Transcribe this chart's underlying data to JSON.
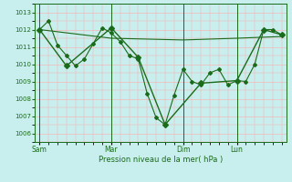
{
  "xlabel": "Pression niveau de la mer( hPa )",
  "background_color": "#c8eeee",
  "grid_color": "#ffaaaa",
  "line_color": "#1a6b1a",
  "ylim": [
    1005.5,
    1013.5
  ],
  "yticks": [
    1006,
    1007,
    1008,
    1009,
    1010,
    1011,
    1012,
    1013
  ],
  "day_labels": [
    "Sam",
    "Mar",
    "Dim",
    "Lun"
  ],
  "day_positions": [
    0,
    8,
    16,
    22
  ],
  "total_x_points": 28,
  "xlim": [
    -0.5,
    27.5
  ],
  "series1_x": [
    0,
    1,
    2,
    3,
    4,
    5,
    6,
    7,
    8,
    9,
    10,
    11,
    12,
    13,
    14,
    15,
    16,
    17,
    18,
    19,
    20,
    21,
    22,
    23,
    24,
    25,
    26,
    27
  ],
  "series1_y": [
    1012.0,
    1012.5,
    1011.1,
    1010.5,
    1009.9,
    1010.3,
    1011.2,
    1012.1,
    1011.8,
    1011.3,
    1010.5,
    1010.3,
    1008.3,
    1006.9,
    1006.5,
    1008.2,
    1009.7,
    1009.0,
    1008.8,
    1009.5,
    1009.7,
    1008.8,
    1009.05,
    1009.0,
    1010.0,
    1012.0,
    1012.0,
    1011.7
  ],
  "series2_x": [
    0,
    8,
    16,
    22,
    27
  ],
  "series2_y": [
    1012.0,
    1011.5,
    1011.4,
    1011.5,
    1011.6
  ],
  "series3_x": [
    0,
    3,
    8,
    11,
    14,
    18,
    22,
    25,
    27
  ],
  "series3_y": [
    1012.0,
    1009.9,
    1012.1,
    1010.4,
    1006.5,
    1008.9,
    1009.05,
    1012.0,
    1011.7
  ]
}
